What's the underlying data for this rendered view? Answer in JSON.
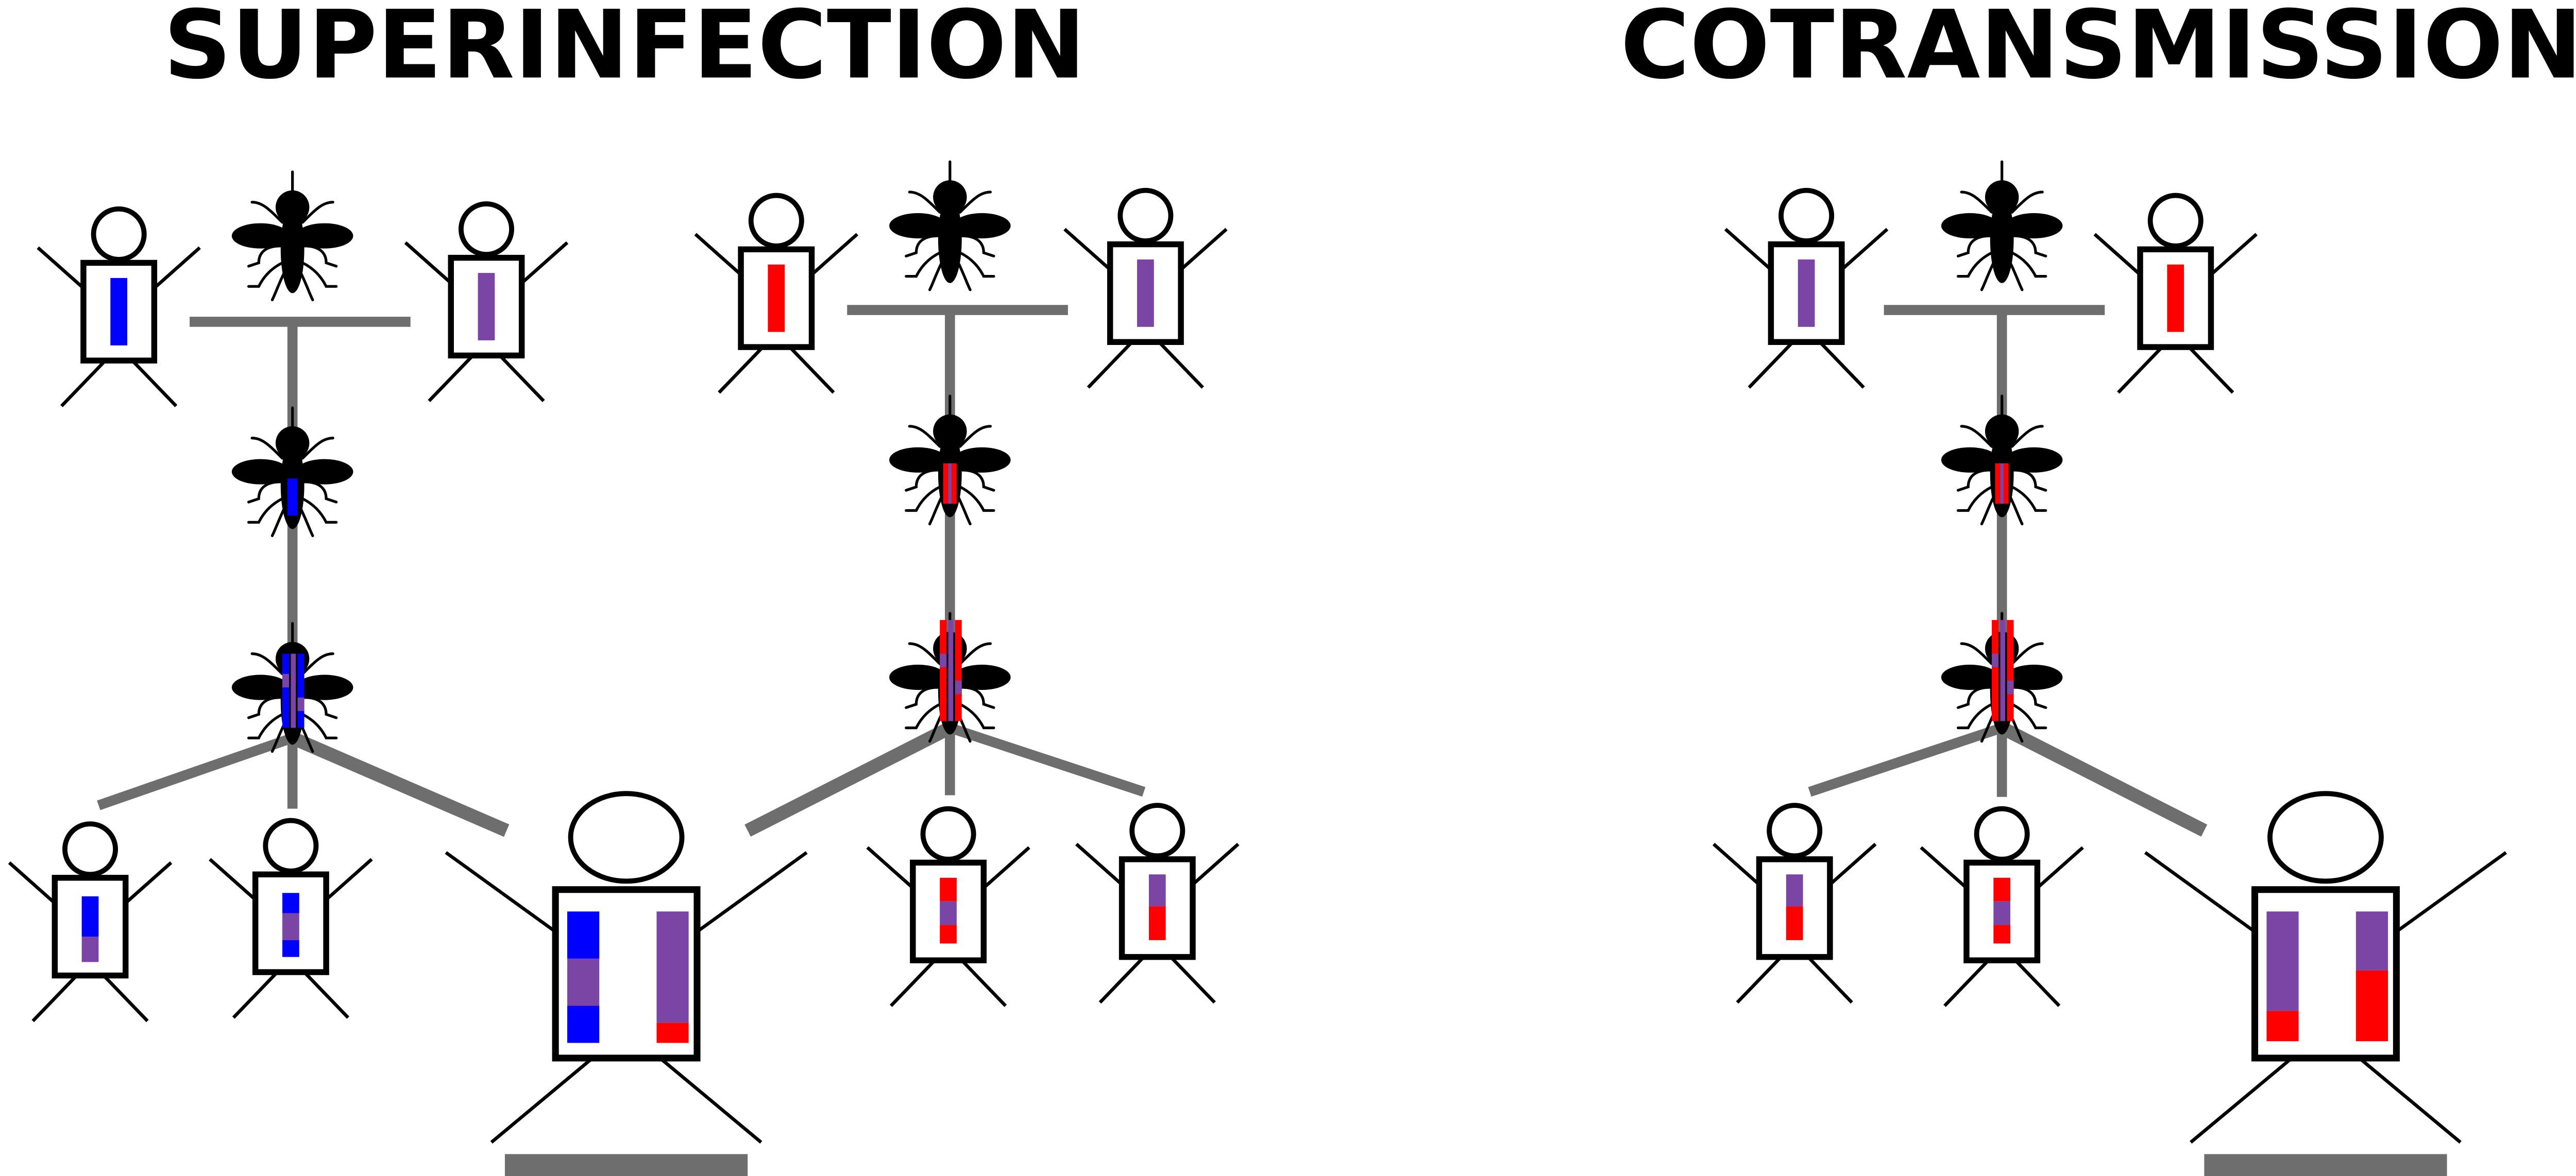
{
  "panels": {
    "superinfection": {
      "title": "SUPERINFECTION"
    },
    "cotransmission": {
      "title": "COTRANSMISSION"
    }
  },
  "colors": {
    "strain_blue": "#0000ff",
    "strain_red": "#ff0000",
    "mixed_purple": "#7b45a6",
    "transmission_link": "#6e6e6e",
    "outline": "#000000",
    "background": "#ffffff"
  },
  "icons": [
    "human-host-icon",
    "mosquito-icon"
  ]
}
